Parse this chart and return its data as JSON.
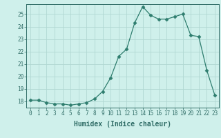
{
  "x": [
    0,
    1,
    2,
    3,
    4,
    5,
    6,
    7,
    8,
    9,
    10,
    11,
    12,
    13,
    14,
    15,
    16,
    17,
    18,
    19,
    20,
    21,
    22,
    23
  ],
  "y": [
    18.1,
    18.1,
    17.9,
    17.8,
    17.8,
    17.7,
    17.8,
    17.9,
    18.2,
    18.8,
    19.9,
    21.6,
    22.2,
    24.3,
    25.6,
    24.9,
    24.6,
    24.6,
    24.8,
    25.0,
    23.3,
    23.2,
    20.5,
    18.5
  ],
  "line_color": "#2e7d6e",
  "marker": "D",
  "marker_size": 2.5,
  "bg_color": "#cff0eb",
  "grid_color": "#b0d8d2",
  "xlabel": "Humidex (Indice chaleur)",
  "ylim": [
    17.5,
    25.8
  ],
  "xlim": [
    -0.5,
    23.5
  ],
  "yticks": [
    18,
    19,
    20,
    21,
    22,
    23,
    24,
    25
  ],
  "xticks": [
    0,
    1,
    2,
    3,
    4,
    5,
    6,
    7,
    8,
    9,
    10,
    11,
    12,
    13,
    14,
    15,
    16,
    17,
    18,
    19,
    20,
    21,
    22,
    23
  ],
  "xtick_labels": [
    "0",
    "1",
    "2",
    "3",
    "4",
    "5",
    "6",
    "7",
    "8",
    "9",
    "10",
    "11",
    "12",
    "13",
    "14",
    "15",
    "16",
    "17",
    "18",
    "19",
    "20",
    "21",
    "22",
    "23"
  ],
  "font_color": "#2e6b65",
  "tick_fontsize": 5.5,
  "label_fontsize": 7
}
